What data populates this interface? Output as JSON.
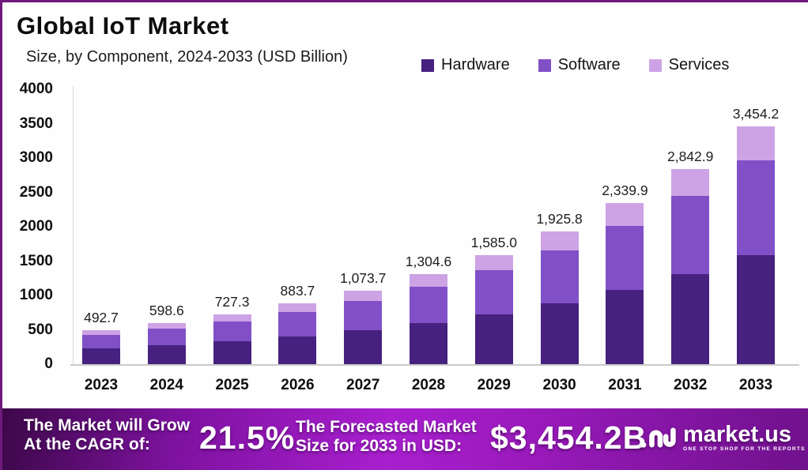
{
  "header": {
    "title": "Global IoT Market",
    "subtitle": "Size, by Component, 2024-2033 (USD Billion)"
  },
  "chart_data": {
    "type": "bar",
    "stacked": true,
    "title": "Global IoT Market Size, by Component, 2024-2033 (USD Billion)",
    "categories": [
      "2023",
      "2024",
      "2025",
      "2026",
      "2027",
      "2028",
      "2029",
      "2030",
      "2031",
      "2032",
      "2033"
    ],
    "totals": [
      492.7,
      598.6,
      727.3,
      883.7,
      1073.7,
      1304.6,
      1585.0,
      1925.8,
      2339.9,
      2842.9,
      3454.2
    ],
    "total_labels": [
      "492.7",
      "598.6",
      "727.3",
      "883.7",
      "1,073.7",
      "1,304.6",
      "1,585.0",
      "1,925.8",
      "2,339.9",
      "2,842.9",
      "3,454.2"
    ],
    "series": [
      {
        "name": "Hardware",
        "color": "#46217F",
        "values": [
          226.6,
          275.4,
          334.6,
          406.5,
          493.9,
          600.1,
          729.1,
          885.9,
          1076.4,
          1307.7,
          1588.9
        ]
      },
      {
        "name": "Software",
        "color": "#8150C7",
        "values": [
          197.1,
          239.4,
          290.9,
          353.5,
          429.5,
          521.8,
          634.0,
          770.3,
          936.0,
          1137.2,
          1381.7
        ]
      },
      {
        "name": "Services",
        "color": "#CDA3E5",
        "values": [
          69.0,
          83.8,
          101.8,
          123.7,
          150.3,
          182.7,
          221.9,
          269.6,
          327.5,
          398.0,
          483.6
        ]
      }
    ],
    "ylim": [
      0,
      4000
    ],
    "ytick_interval": 500,
    "yticks": [
      "4000",
      "3500",
      "3000",
      "2500",
      "2000",
      "1500",
      "1000",
      "500",
      "0"
    ],
    "grid": false,
    "legend_position": "top-right"
  },
  "banner": {
    "cagr_label_line1": "The Market will Grow",
    "cagr_label_line2": "At the CAGR of:",
    "cagr_value": "21.5%",
    "forecast_label_line1": "The Forecasted Market",
    "forecast_label_line2": "Size for 2033 in USD:",
    "forecast_value": "$3,454.2B",
    "logo_text": "market.us",
    "logo_tagline": "ONE STOP SHOP FOR THE REPORTS",
    "accent_color": "#A81FCE"
  }
}
